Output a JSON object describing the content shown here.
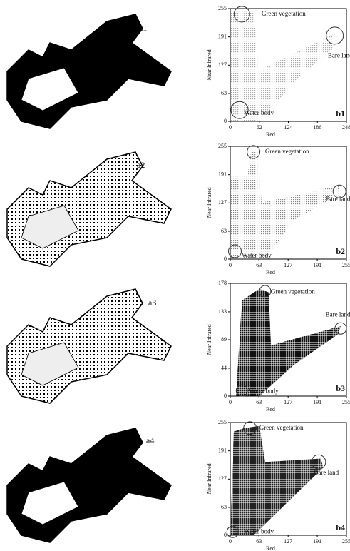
{
  "maps": [
    {
      "label": "a1"
    },
    {
      "label": "a2"
    },
    {
      "label": "a3"
    },
    {
      "label": "a4"
    }
  ],
  "chart_data": [
    {
      "type": "scatter",
      "label": "b1",
      "xlabel": "Red",
      "ylabel": "Near Infrared",
      "xlim": [
        0,
        248
      ],
      "xticks": [
        0,
        62,
        124,
        186,
        248
      ],
      "ylim": [
        0,
        255
      ],
      "yticks": [
        0,
        63,
        127,
        191,
        255
      ],
      "annotations": [
        "Green vegetation",
        "Bare land",
        "Water body"
      ],
      "color": "#aaaaaa"
    },
    {
      "type": "scatter",
      "label": "b2",
      "xlabel": "Red",
      "ylabel": "Near Infrared",
      "xlim": [
        0,
        255
      ],
      "xticks": [
        0,
        63,
        127,
        191,
        255
      ],
      "ylim": [
        0,
        255
      ],
      "yticks": [
        0,
        63,
        127,
        191,
        255
      ],
      "annotations": [
        "Green vegetation",
        "Bare land",
        "Water body"
      ],
      "color": "#888888"
    },
    {
      "type": "scatter",
      "label": "b3",
      "xlabel": "Red",
      "ylabel": "Near Infrared",
      "xlim": [
        0,
        255
      ],
      "xticks": [
        0,
        63,
        127,
        191,
        255
      ],
      "ylim": [
        0,
        178
      ],
      "yticks": [
        0,
        44,
        89,
        133,
        178
      ],
      "annotations": [
        "Green vegetation",
        "Bare land",
        "Water body"
      ],
      "color": "#111111"
    },
    {
      "type": "scatter",
      "label": "b4",
      "xlabel": "Red",
      "ylabel": "Near Infrared",
      "xlim": [
        0,
        255
      ],
      "xticks": [
        0,
        63,
        127,
        191,
        255
      ],
      "ylim": [
        0,
        255
      ],
      "yticks": [
        0,
        63,
        127,
        191,
        255
      ],
      "annotations": [
        "Green vegetation",
        "Bare land",
        "Water body"
      ],
      "color": "#222222"
    }
  ]
}
